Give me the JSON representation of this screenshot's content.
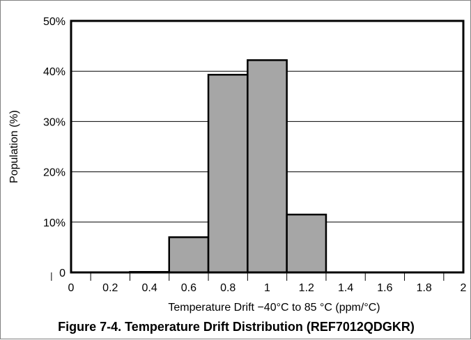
{
  "chart_data": {
    "type": "bar",
    "title": "",
    "caption": "Figure 7-4. Temperature Drift Distribution (REF7012QDGKR)",
    "xlabel": "Temperature Drift −40°C to 85 °C (ppm/°C)",
    "ylabel": "Population (%)",
    "x_tick_labels": [
      "0",
      "0.2",
      "0.4",
      "0.6",
      "0.8",
      "1",
      "1.2",
      "1.4",
      "1.6",
      "1.8",
      "2"
    ],
    "y_tick_labels": [
      "0",
      "10%",
      "20%",
      "30%",
      "40%",
      "50%"
    ],
    "ylim": [
      0,
      50
    ],
    "xlim": [
      0,
      2
    ],
    "bins": [
      {
        "label": "0.4",
        "value": 0.1
      },
      {
        "label": "0.6",
        "value": 7.0
      },
      {
        "label": "0.8",
        "value": 39.3
      },
      {
        "label": "1",
        "value": 42.2
      },
      {
        "label": "1.2",
        "value": 11.5
      }
    ],
    "grid": true,
    "bar_color": "#a6a6a6",
    "edge_color": "#000000"
  }
}
